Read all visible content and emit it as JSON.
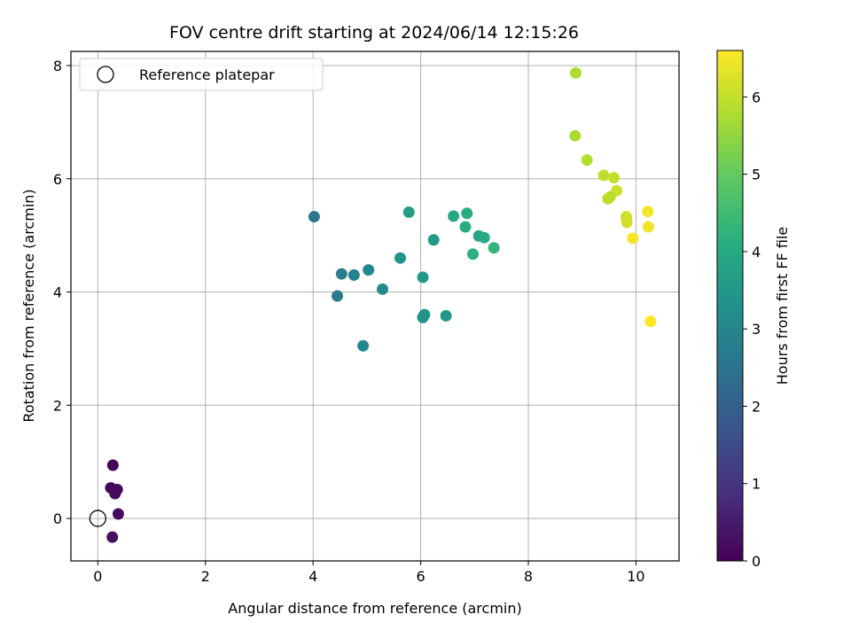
{
  "chart_data": {
    "type": "scatter",
    "title": "FOV centre drift starting at 2024/06/14 12:15:26",
    "xlabel": "Angular distance from reference (arcmin)",
    "ylabel": "Rotation from reference (arcmin)",
    "xlim": [
      -0.5,
      10.8
    ],
    "ylim": [
      -0.75,
      8.25
    ],
    "x_ticks": [
      0,
      2,
      4,
      6,
      8,
      10
    ],
    "y_ticks": [
      0,
      2,
      4,
      6,
      8
    ],
    "grid": true,
    "legend": {
      "placement": "top-left",
      "entries": [
        {
          "label": "Reference platepar",
          "marker": "hollow-circle"
        }
      ]
    },
    "reference_point": {
      "x": 0,
      "y": 0
    },
    "colorbar": {
      "label": "Hours from first FF file",
      "range": [
        0,
        6.6
      ],
      "ticks": [
        0,
        1,
        2,
        3,
        4,
        5,
        6
      ],
      "colormap": "viridis"
    },
    "points": [
      {
        "x": 0.28,
        "y": 0.94,
        "c": 0.08
      },
      {
        "x": 0.24,
        "y": 0.54,
        "c": 0.12
      },
      {
        "x": 0.36,
        "y": 0.51,
        "c": 0.15
      },
      {
        "x": 0.32,
        "y": 0.44,
        "c": 0.18
      },
      {
        "x": 0.38,
        "y": 0.08,
        "c": 0.22
      },
      {
        "x": 0.27,
        "y": -0.33,
        "c": 0.25
      },
      {
        "x": 4.02,
        "y": 5.33,
        "c": 2.55
      },
      {
        "x": 4.45,
        "y": 3.93,
        "c": 2.7
      },
      {
        "x": 4.53,
        "y": 4.32,
        "c": 2.8
      },
      {
        "x": 4.76,
        "y": 4.3,
        "c": 2.9
      },
      {
        "x": 5.03,
        "y": 4.39,
        "c": 3.0
      },
      {
        "x": 4.93,
        "y": 3.05,
        "c": 3.05
      },
      {
        "x": 5.29,
        "y": 4.05,
        "c": 3.15
      },
      {
        "x": 5.62,
        "y": 4.6,
        "c": 3.4
      },
      {
        "x": 5.78,
        "y": 5.41,
        "c": 3.6
      },
      {
        "x": 6.04,
        "y": 4.26,
        "c": 3.5
      },
      {
        "x": 6.04,
        "y": 3.55,
        "c": 3.3
      },
      {
        "x": 6.07,
        "y": 3.6,
        "c": 3.35
      },
      {
        "x": 6.24,
        "y": 4.92,
        "c": 3.55
      },
      {
        "x": 6.47,
        "y": 3.58,
        "c": 3.45
      },
      {
        "x": 6.61,
        "y": 5.34,
        "c": 3.95
      },
      {
        "x": 6.83,
        "y": 5.15,
        "c": 4.1
      },
      {
        "x": 6.86,
        "y": 5.39,
        "c": 4.05
      },
      {
        "x": 6.97,
        "y": 4.67,
        "c": 4.2
      },
      {
        "x": 7.08,
        "y": 4.99,
        "c": 3.9
      },
      {
        "x": 7.18,
        "y": 4.96,
        "c": 4.0
      },
      {
        "x": 7.36,
        "y": 4.78,
        "c": 4.3
      },
      {
        "x": 8.88,
        "y": 7.87,
        "c": 5.8
      },
      {
        "x": 8.87,
        "y": 6.76,
        "c": 5.75
      },
      {
        "x": 9.09,
        "y": 6.33,
        "c": 5.85
      },
      {
        "x": 9.4,
        "y": 6.06,
        "c": 5.95
      },
      {
        "x": 9.59,
        "y": 6.02,
        "c": 6.0
      },
      {
        "x": 9.64,
        "y": 5.79,
        "c": 6.05
      },
      {
        "x": 9.48,
        "y": 5.65,
        "c": 5.9
      },
      {
        "x": 9.52,
        "y": 5.68,
        "c": 5.92
      },
      {
        "x": 9.82,
        "y": 5.33,
        "c": 6.1
      },
      {
        "x": 9.83,
        "y": 5.23,
        "c": 6.15
      },
      {
        "x": 9.94,
        "y": 4.95,
        "c": 6.55
      },
      {
        "x": 10.22,
        "y": 5.42,
        "c": 6.5
      },
      {
        "x": 10.23,
        "y": 5.15,
        "c": 6.45
      },
      {
        "x": 10.27,
        "y": 3.48,
        "c": 6.6
      }
    ]
  }
}
